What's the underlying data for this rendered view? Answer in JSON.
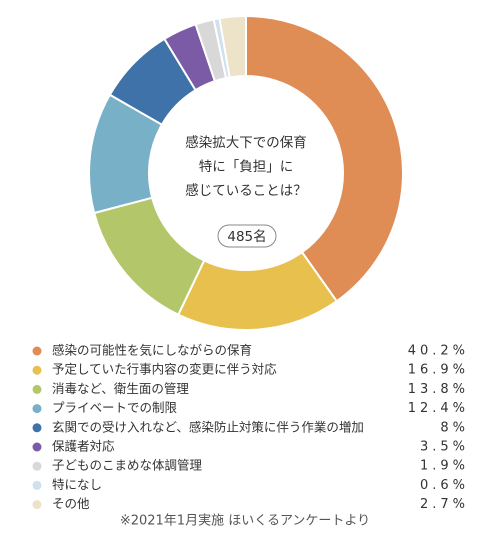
{
  "chart_data": {
    "type": "donut",
    "center_text": [
      "感染拡大下での保育",
      "特に「負担」に",
      "感じていることは？"
    ],
    "total_label": "485名",
    "categories": [
      "感染の可能性を気にしながらの保育",
      "予定していた行事内容の変更に伴う対応",
      "消毒など、衛生面の管理",
      "プライベートでの制限",
      "玄関での受け入れなど、感染防止対策に伴う作業の増加",
      "保護者対応",
      "子どものこまめな体調管理",
      "特になし",
      "その他"
    ],
    "values": [
      40.2,
      16.9,
      13.8,
      12.4,
      8,
      3.5,
      1.9,
      0.6,
      2.7
    ],
    "value_labels": [
      "40.2%",
      "16.9%",
      "13.8%",
      "12.4%",
      "8%",
      "3.5%",
      "1.9%",
      "0.6%",
      "2.7%"
    ],
    "colors": [
      "#e08c55",
      "#e8c04e",
      "#b3c76a",
      "#78b0c8",
      "#3e72a8",
      "#7b5aa6",
      "#d8d8d8",
      "#cfe0ee",
      "#ece3c8"
    ],
    "footnote": "※2021年1月実施 ほいくるアンケートより"
  }
}
